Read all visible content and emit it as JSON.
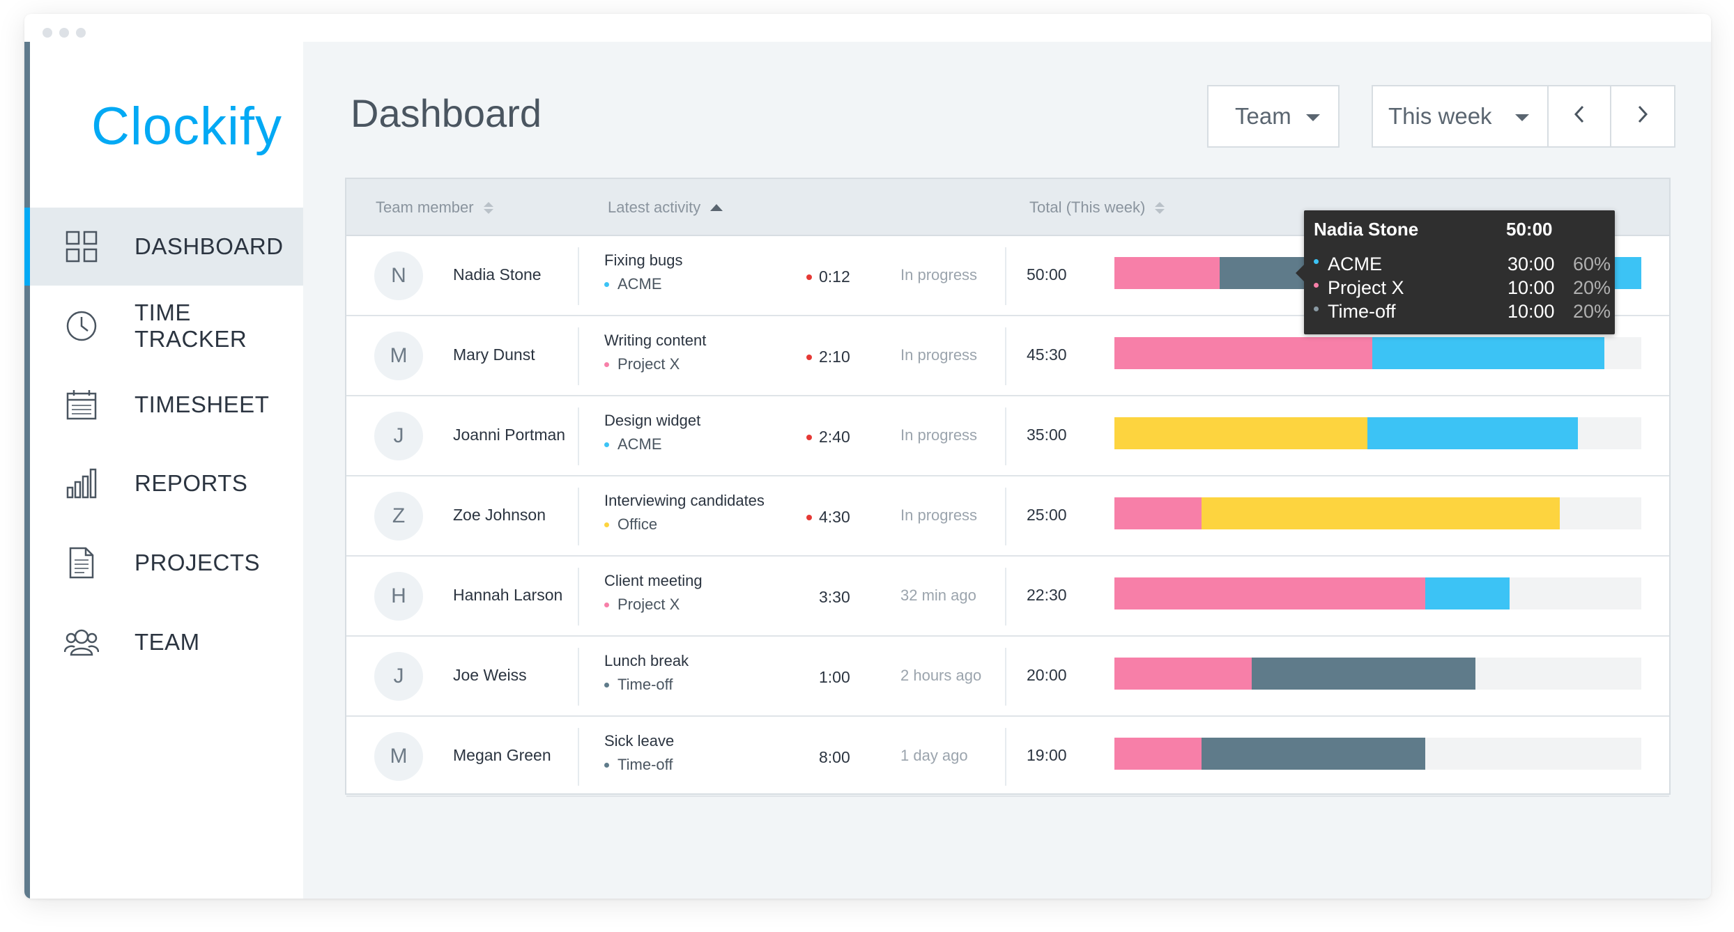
{
  "colors": {
    "acme": "#3cc3f5",
    "projectx": "#f77fa8",
    "timeoff": "#5f7b8a",
    "office": "#fdd43f",
    "accent": "#03a9f4"
  },
  "app": {
    "logo": "Clockify"
  },
  "sidebar": {
    "items": [
      {
        "label": "DASHBOARD",
        "icon": "dashboard-grid-icon",
        "active": true
      },
      {
        "label": "TIME TRACKER",
        "icon": "clock-icon",
        "active": false
      },
      {
        "label": "TIMESHEET",
        "icon": "calendar-icon",
        "active": false
      },
      {
        "label": "REPORTS",
        "icon": "bar-chart-icon",
        "active": false
      },
      {
        "label": "PROJECTS",
        "icon": "document-icon",
        "active": false
      },
      {
        "label": "TEAM",
        "icon": "people-icon",
        "active": false
      }
    ]
  },
  "header": {
    "title": "Dashboard",
    "team_select": "Team",
    "range_select": "This week",
    "prev_icon": "chevron-left-icon",
    "next_icon": "chevron-right-icon"
  },
  "table": {
    "columns": {
      "member": "Team member",
      "activity": "Latest activity",
      "total": "Total (This week)"
    },
    "rows": [
      {
        "initial": "N",
        "name": "Nadia Stone",
        "activity": "Fixing bugs",
        "project": "ACME",
        "project_color": "#3cc3f5",
        "duration": "0:12",
        "running": true,
        "status": "In progress",
        "total": "50:00",
        "segments": [
          {
            "color": "#f77fa8",
            "fraction": 0.2
          },
          {
            "color": "#5f7b8a",
            "fraction": 0.2
          },
          {
            "color": "#3cc3f5",
            "fraction": 0.6
          }
        ]
      },
      {
        "initial": "M",
        "name": "Mary Dunst",
        "activity": "Writing content",
        "project": "Project X",
        "project_color": "#f77fa8",
        "duration": "2:10",
        "running": true,
        "status": "In progress",
        "total": "45:30",
        "segments": [
          {
            "color": "#f77fa8",
            "fraction": 0.49
          },
          {
            "color": "#3cc3f5",
            "fraction": 0.44
          }
        ]
      },
      {
        "initial": "J",
        "name": "Joanni Portman",
        "activity": "Design widget",
        "project": "ACME",
        "project_color": "#3cc3f5",
        "duration": "2:40",
        "running": true,
        "status": "In progress",
        "total": "35:00",
        "segments": [
          {
            "color": "#fdd43f",
            "fraction": 0.48
          },
          {
            "color": "#3cc3f5",
            "fraction": 0.4
          }
        ]
      },
      {
        "initial": "Z",
        "name": "Zoe Johnson",
        "activity": "Interviewing candidates",
        "project": "Office",
        "project_color": "#fdd43f",
        "duration": "4:30",
        "running": true,
        "status": "In progress",
        "total": "25:00",
        "segments": [
          {
            "color": "#f77fa8",
            "fraction": 0.165
          },
          {
            "color": "#fdd43f",
            "fraction": 0.68
          }
        ]
      },
      {
        "initial": "H",
        "name": "Hannah Larson",
        "activity": "Client meeting",
        "project": "Project X",
        "project_color": "#f77fa8",
        "duration": "3:30",
        "running": false,
        "status": "32 min ago",
        "total": "22:30",
        "segments": [
          {
            "color": "#f77fa8",
            "fraction": 0.59
          },
          {
            "color": "#3cc3f5",
            "fraction": 0.16
          }
        ]
      },
      {
        "initial": "J",
        "name": "Joe Weiss",
        "activity": "Lunch break",
        "project": "Time-off",
        "project_color": "#5f7b8a",
        "duration": "1:00",
        "running": false,
        "status": "2 hours ago",
        "total": "20:00",
        "segments": [
          {
            "color": "#f77fa8",
            "fraction": 0.26
          },
          {
            "color": "#5f7b8a",
            "fraction": 0.425
          }
        ]
      },
      {
        "initial": "M",
        "name": "Megan Green",
        "activity": "Sick leave",
        "project": "Time-off",
        "project_color": "#5f7b8a",
        "duration": "8:00",
        "running": false,
        "status": "1 day ago",
        "total": "19:00",
        "segments": [
          {
            "color": "#f77fa8",
            "fraction": 0.165
          },
          {
            "color": "#5f7b8a",
            "fraction": 0.425
          }
        ]
      }
    ]
  },
  "tooltip": {
    "name": "Nadia Stone",
    "total": "50:00",
    "items": [
      {
        "label": "ACME",
        "time": "30:00",
        "percent": "60%",
        "color": "#3cc3f5"
      },
      {
        "label": "Project X",
        "time": "10:00",
        "percent": "20%",
        "color": "#f77fa8"
      },
      {
        "label": "Time-off",
        "time": "10:00",
        "percent": "20%",
        "color": "#5f7b8a"
      }
    ]
  }
}
